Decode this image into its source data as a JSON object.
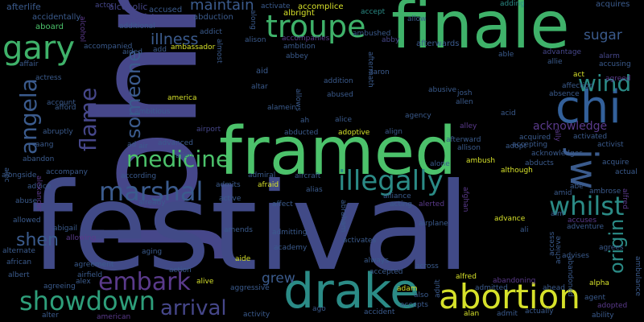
{
  "background_color": "#000000",
  "words": [
    {
      "id": "johnny",
      "text": "johnny",
      "color": "#46478a"
    },
    {
      "id": "festival",
      "text": "festival",
      "color": "#414a87"
    },
    {
      "id": "finale",
      "text": "finale",
      "color": "#3fb26a"
    },
    {
      "id": "framed",
      "text": "framed",
      "color": "#4cc26b"
    },
    {
      "id": "chi",
      "text": "chi",
      "color": "#33609a"
    },
    {
      "id": "drake",
      "text": "drake",
      "color": "#2b8b86"
    },
    {
      "id": "abortion",
      "text": "abortion",
      "color": "#d6e12a"
    },
    {
      "id": "troupe",
      "text": "troupe",
      "color": "#3fb26a"
    },
    {
      "id": "gary",
      "text": "gary",
      "color": "#3fb26a"
    },
    {
      "id": "jw",
      "text": "jw",
      "color": "#3b5b8d"
    },
    {
      "id": "showdown",
      "text": "showdown",
      "color": "#2e9e7a"
    },
    {
      "id": "medicine",
      "text": "medicine",
      "color": "#4cc26b"
    },
    {
      "id": "marshal",
      "text": "marshal",
      "color": "#3b5b8d"
    },
    {
      "id": "illegally",
      "text": "illegally",
      "color": "#2b8b86"
    },
    {
      "id": "whilst",
      "text": "whilst",
      "color": "#2b8b86"
    },
    {
      "id": "wind",
      "text": "wind",
      "color": "#2b8b86"
    },
    {
      "id": "embark",
      "text": "embark",
      "color": "#5a3a8b"
    },
    {
      "id": "arrival",
      "text": "arrival",
      "color": "#46478a"
    },
    {
      "id": "angela",
      "text": "angela",
      "color": "#3b5b8d"
    },
    {
      "id": "flame",
      "text": "flame",
      "color": "#46478a"
    },
    {
      "id": "someone",
      "text": "someone",
      "color": "#3b5b8d"
    },
    {
      "id": "shen",
      "text": "shen",
      "color": "#3b5b8d"
    },
    {
      "id": "origin",
      "text": "origin",
      "color": "#2b8b86"
    },
    {
      "id": "maintain",
      "text": "maintain",
      "color": "#3b5b8d"
    },
    {
      "id": "illness",
      "text": "illness",
      "color": "#3b5b8d"
    },
    {
      "id": "sugar",
      "text": "sugar",
      "color": "#3b5b8d"
    },
    {
      "id": "acknowledge",
      "text": "acknowledge",
      "color": "#5a3a8b"
    },
    {
      "id": "grew",
      "text": "grew",
      "color": "#3b5b8d"
    },
    {
      "id": "afterlife",
      "text": "afterlife",
      "color": "#3b5b8d"
    },
    {
      "id": "alcoholic",
      "text": "alcoholic",
      "color": "#46478a"
    },
    {
      "id": "accused",
      "text": "accused",
      "color": "#3b5b8d"
    },
    {
      "id": "abduction",
      "text": "abduction",
      "color": "#3b5b8d"
    },
    {
      "id": "accomplice",
      "text": "accomplice",
      "color": "#d6e12a"
    },
    {
      "id": "albright",
      "text": "albright",
      "color": "#d6e12a"
    },
    {
      "id": "accept",
      "text": "accept",
      "color": "#2b8b86"
    },
    {
      "id": "adding",
      "text": "adding",
      "color": "#2b8b86"
    },
    {
      "id": "acquires",
      "text": "acquires",
      "color": "#3b5b8d"
    },
    {
      "id": "actor",
      "text": "actor",
      "color": "#46478a"
    },
    {
      "id": "activate",
      "text": "activate",
      "color": "#3b5b8d"
    },
    {
      "id": "accidentally",
      "text": "accidentally",
      "color": "#3b5b8d"
    },
    {
      "id": "acquaintance",
      "text": "acquaintance",
      "color": "#46478a"
    },
    {
      "id": "aboard",
      "text": "aboard",
      "color": "#4cc26b"
    },
    {
      "id": "additional",
      "text": "additional",
      "color": "#3b5b8d"
    },
    {
      "id": "addict",
      "text": "addict",
      "color": "#3b5b8d"
    },
    {
      "id": "allow",
      "text": "allow",
      "color": "#3b5b8d"
    },
    {
      "id": "accompanies",
      "text": "accompanies",
      "color": "#5a3a8b"
    },
    {
      "id": "ambushed",
      "text": "ambushed",
      "color": "#3b5b8d"
    },
    {
      "id": "alison",
      "text": "alison",
      "color": "#3b5b8d"
    },
    {
      "id": "ambition",
      "text": "ambition",
      "color": "#3b5b8d"
    },
    {
      "id": "abby",
      "text": "abby",
      "color": "#46478a"
    },
    {
      "id": "afterwards",
      "text": "afterwards",
      "color": "#3b5b8d"
    },
    {
      "id": "accompanied",
      "text": "accompanied",
      "color": "#3b5b8d"
    },
    {
      "id": "ambassador",
      "text": "ambassador",
      "color": "#d6e12a"
    },
    {
      "id": "add",
      "text": "add",
      "color": "#3b5b8d"
    },
    {
      "id": "aided",
      "text": "aided",
      "color": "#3b5b8d"
    },
    {
      "id": "abbey",
      "text": "abbey",
      "color": "#3b5b8d"
    },
    {
      "id": "able",
      "text": "able",
      "color": "#3b5b8d"
    },
    {
      "id": "advantage",
      "text": "advantage",
      "color": "#46478a"
    },
    {
      "id": "allie",
      "text": "allie",
      "color": "#3b5b8d"
    },
    {
      "id": "alarm",
      "text": "alarm",
      "color": "#46478a"
    },
    {
      "id": "accusing",
      "text": "accusing",
      "color": "#3b5b8d"
    },
    {
      "id": "affair",
      "text": "affair",
      "color": "#3b5b8d"
    },
    {
      "id": "actress",
      "text": "actress",
      "color": "#3b5b8d"
    },
    {
      "id": "aid",
      "text": "aid",
      "color": "#3b5b8d"
    },
    {
      "id": "addition",
      "text": "addition",
      "color": "#3b5b8d"
    },
    {
      "id": "aaron",
      "text": "aaron",
      "color": "#3b5b8d"
    },
    {
      "id": "act",
      "text": "act",
      "color": "#d6e12a"
    },
    {
      "id": "agreed",
      "text": "agreed",
      "color": "#5a3a8b"
    },
    {
      "id": "america",
      "text": "america",
      "color": "#d6e12a"
    },
    {
      "id": "altar",
      "text": "altar",
      "color": "#3b5b8d"
    },
    {
      "id": "abused",
      "text": "abused",
      "color": "#3b5b8d"
    },
    {
      "id": "abusive",
      "text": "abusive",
      "color": "#3b5b8d"
    },
    {
      "id": "affection",
      "text": "affection",
      "color": "#3b5b8d"
    },
    {
      "id": "absence",
      "text": "absence",
      "color": "#3b5b8d"
    },
    {
      "id": "account",
      "text": "account",
      "color": "#3b5b8d"
    },
    {
      "id": "afford",
      "text": "afford",
      "color": "#3b5b8d"
    },
    {
      "id": "ambitious",
      "text": "ambitious",
      "color": "#3b5b8d"
    },
    {
      "id": "alamein",
      "text": "alamein",
      "color": "#3b5b8d"
    },
    {
      "id": "josh",
      "text": "josh",
      "color": "#3b5b8d"
    },
    {
      "id": "allen",
      "text": "allen",
      "color": "#3b5b8d"
    },
    {
      "id": "acid",
      "text": "acid",
      "color": "#3b5b8d"
    },
    {
      "id": "agency",
      "text": "agency",
      "color": "#3b5b8d"
    },
    {
      "id": "ah",
      "text": "ah",
      "color": "#3b5b8d"
    },
    {
      "id": "alice",
      "text": "alice",
      "color": "#3b5b8d"
    },
    {
      "id": "abruptly",
      "text": "abruptly",
      "color": "#3b5b8d"
    },
    {
      "id": "airport",
      "text": "airport",
      "color": "#46478a"
    },
    {
      "id": "alley",
      "text": "alley",
      "color": "#5a3a8b"
    },
    {
      "id": "abducted",
      "text": "abducted",
      "color": "#3b5b8d"
    },
    {
      "id": "adoptive",
      "text": "adoptive",
      "color": "#d6e12a"
    },
    {
      "id": "align",
      "text": "align",
      "color": "#3b5b8d"
    },
    {
      "id": "afterward",
      "text": "afterward",
      "color": "#3b5b8d"
    },
    {
      "id": "accepting",
      "text": "accepting",
      "color": "#3b5b8d"
    },
    {
      "id": "acquired",
      "text": "acquired",
      "color": "#3b5b8d"
    },
    {
      "id": "activated",
      "text": "activated",
      "color": "#3b5b8d"
    },
    {
      "id": "activist",
      "text": "activist",
      "color": "#3b5b8d"
    },
    {
      "id": "aang",
      "text": "aang",
      "color": "#3b5b8d"
    },
    {
      "id": "ad",
      "text": "ad",
      "color": "#3b5b8d"
    },
    {
      "id": "air",
      "text": "air",
      "color": "#3b5b8d"
    },
    {
      "id": "advanced",
      "text": "advanced",
      "color": "#3b5b8d"
    },
    {
      "id": "allison",
      "text": "allison",
      "color": "#3b5b8d"
    },
    {
      "id": "adopt",
      "text": "adopt",
      "color": "#3b5b8d"
    },
    {
      "id": "acknowledges",
      "text": "acknowledges",
      "color": "#3b5b8d"
    },
    {
      "id": "abandon",
      "text": "abandon",
      "color": "#3b5b8d"
    },
    {
      "id": "alien",
      "text": "alien",
      "color": "#3b5b8d"
    },
    {
      "id": "alone",
      "text": "alone",
      "color": "#3b5b8d"
    },
    {
      "id": "ambush",
      "text": "ambush",
      "color": "#d6e12a"
    },
    {
      "id": "abducts",
      "text": "abducts",
      "color": "#3b5b8d"
    },
    {
      "id": "acquire",
      "text": "acquire",
      "color": "#3b5b8d"
    },
    {
      "id": "alongside",
      "text": "alongside",
      "color": "#3b5b8d"
    },
    {
      "id": "accompany",
      "text": "accompany",
      "color": "#3b5b8d"
    },
    {
      "id": "according",
      "text": "according",
      "color": "#3b5b8d"
    },
    {
      "id": "admiral",
      "text": "admiral",
      "color": "#3b5b8d"
    },
    {
      "id": "aircraft",
      "text": "aircraft",
      "color": "#3b5b8d"
    },
    {
      "id": "although",
      "text": "although",
      "color": "#d6e12a"
    },
    {
      "id": "actual",
      "text": "actual",
      "color": "#3b5b8d"
    },
    {
      "id": "advice",
      "text": "advice",
      "color": "#3b5b8d"
    },
    {
      "id": "admits",
      "text": "admits",
      "color": "#3b5b8d"
    },
    {
      "id": "afraid",
      "text": "afraid",
      "color": "#d6e12a"
    },
    {
      "id": "alias",
      "text": "alias",
      "color": "#3b5b8d"
    },
    {
      "id": "abe",
      "text": "abe",
      "color": "#3b5b8d"
    },
    {
      "id": "ambrose",
      "text": "ambrose",
      "color": "#3b5b8d"
    },
    {
      "id": "amid",
      "text": "amid",
      "color": "#3b5b8d"
    },
    {
      "id": "abuse",
      "text": "abuse",
      "color": "#3b5b8d"
    },
    {
      "id": "already",
      "text": "already",
      "color": "#3b5b8d"
    },
    {
      "id": "active",
      "text": "active",
      "color": "#3b5b8d"
    },
    {
      "id": "alliance",
      "text": "alliance",
      "color": "#3b5b8d"
    },
    {
      "id": "acting",
      "text": "acting",
      "color": "#3b5b8d"
    },
    {
      "id": "alerted",
      "text": "alerted",
      "color": "#5a3a8b"
    },
    {
      "id": "affect",
      "text": "affect",
      "color": "#3b5b8d"
    },
    {
      "id": "airplane",
      "text": "airplane",
      "color": "#3b5b8d"
    },
    {
      "id": "aim",
      "text": "aim",
      "color": "#3b5b8d"
    },
    {
      "id": "allowed",
      "text": "allowed",
      "color": "#3b5b8d"
    },
    {
      "id": "abigail",
      "text": "abigail",
      "color": "#3b5b8d"
    },
    {
      "id": "amends",
      "text": "amends",
      "color": "#3b5b8d"
    },
    {
      "id": "admitting",
      "text": "admitting",
      "color": "#3b5b8d"
    },
    {
      "id": "advance",
      "text": "advance",
      "color": "#d6e12a"
    },
    {
      "id": "ali",
      "text": "ali",
      "color": "#3b5b8d"
    },
    {
      "id": "accuses",
      "text": "accuses",
      "color": "#5a3a8b"
    },
    {
      "id": "adventure",
      "text": "adventure",
      "color": "#3b5b8d"
    },
    {
      "id": "allowing",
      "text": "allowing",
      "color": "#5a3a8b"
    },
    {
      "id": "activates",
      "text": "activates",
      "color": "#3b5b8d"
    },
    {
      "id": "academy",
      "text": "academy",
      "color": "#3b5b8d"
    },
    {
      "id": "agrees",
      "text": "agrees",
      "color": "#3b5b8d"
    },
    {
      "id": "alternate",
      "text": "alternate",
      "color": "#3b5b8d"
    },
    {
      "id": "african",
      "text": "african",
      "color": "#3b5b8d"
    },
    {
      "id": "agreement",
      "text": "agreement",
      "color": "#3b5b8d"
    },
    {
      "id": "aging",
      "text": "aging",
      "color": "#3b5b8d"
    },
    {
      "id": "aide",
      "text": "aide",
      "color": "#d6e12a"
    },
    {
      "id": "always",
      "text": "always",
      "color": "#3b5b8d"
    },
    {
      "id": "across",
      "text": "across",
      "color": "#3b5b8d"
    },
    {
      "id": "advises",
      "text": "advises",
      "color": "#3b5b8d"
    },
    {
      "id": "airfield",
      "text": "airfield",
      "color": "#3b5b8d"
    },
    {
      "id": "albert",
      "text": "albert",
      "color": "#3b5b8d"
    },
    {
      "id": "alex",
      "text": "alex",
      "color": "#3b5b8d"
    },
    {
      "id": "action",
      "text": "action",
      "color": "#3b5b8d"
    },
    {
      "id": "alive",
      "text": "alive",
      "color": "#d6e12a"
    },
    {
      "id": "accepted",
      "text": "accepted",
      "color": "#3b5b8d"
    },
    {
      "id": "alfred",
      "text": "alfred",
      "color": "#d6e12a"
    },
    {
      "id": "abandoning",
      "text": "abandoning",
      "color": "#5a3a8b"
    },
    {
      "id": "admitted",
      "text": "admitted",
      "color": "#3b5b8d"
    },
    {
      "id": "alpha",
      "text": "alpha",
      "color": "#d6e12a"
    },
    {
      "id": "agreeing",
      "text": "agreeing",
      "color": "#3b5b8d"
    },
    {
      "id": "aggressive",
      "text": "aggressive",
      "color": "#3b5b8d"
    },
    {
      "id": "adam",
      "text": "adam",
      "color": "#d6e12a"
    },
    {
      "id": "ahead",
      "text": "ahead",
      "color": "#3b5b8d"
    },
    {
      "id": "agent",
      "text": "agent",
      "color": "#3b5b8d"
    },
    {
      "id": "also",
      "text": "also",
      "color": "#3b5b8d"
    },
    {
      "id": "accepts",
      "text": "accepts",
      "color": "#3b5b8d"
    },
    {
      "id": "adopted",
      "text": "adopted",
      "color": "#5a3a8b"
    },
    {
      "id": "alter",
      "text": "alter",
      "color": "#3b5b8d"
    },
    {
      "id": "american",
      "text": "american",
      "color": "#5a3a8b"
    },
    {
      "id": "activity",
      "text": "activity",
      "color": "#3b5b8d"
    },
    {
      "id": "ago",
      "text": "ago",
      "color": "#3b5b8d"
    },
    {
      "id": "accident",
      "text": "accident",
      "color": "#3b5b8d"
    },
    {
      "id": "alan",
      "text": "alan",
      "color": "#d6e12a"
    },
    {
      "id": "admit",
      "text": "admit",
      "color": "#3b5b8d"
    },
    {
      "id": "actually",
      "text": "actually",
      "color": "#3b5b8d"
    },
    {
      "id": "ability",
      "text": "ability",
      "color": "#3b5b8d"
    },
    {
      "id": "alcohol",
      "text": "alcohol",
      "color": "#5a3a8b"
    },
    {
      "id": "almost",
      "text": "almost",
      "color": "#3b5b8d"
    },
    {
      "id": "along",
      "text": "along",
      "color": "#3b5b8d"
    },
    {
      "id": "aftermath",
      "text": "aftermath",
      "color": "#3b5b8d"
    },
    {
      "id": "allows",
      "text": "allows",
      "color": "#3b5b8d"
    },
    {
      "id": "alec",
      "text": "alec",
      "color": "#3b5b8d"
    },
    {
      "id": "alexander",
      "text": "alexander",
      "color": "#5a3a8b"
    },
    {
      "id": "abraham",
      "text": "abraham",
      "color": "#3b5b8d"
    },
    {
      "id": "ally",
      "text": "ally",
      "color": "#5a3a8b"
    },
    {
      "id": "access",
      "text": "access",
      "color": "#3b5b8d"
    },
    {
      "id": "achieve",
      "text": "achieve",
      "color": "#3b5b8d"
    },
    {
      "id": "abandoned",
      "text": "abandoned",
      "color": "#3b5b8d"
    },
    {
      "id": "ambulance",
      "text": "ambulance",
      "color": "#3b5b8d"
    },
    {
      "id": "adult",
      "text": "adult",
      "color": "#3b5b8d"
    },
    {
      "id": "afghan",
      "text": "afghan",
      "color": "#5a3a8b"
    },
    {
      "id": "agreeable",
      "text": "alfred",
      "color": "#5a3a8b"
    }
  ]
}
